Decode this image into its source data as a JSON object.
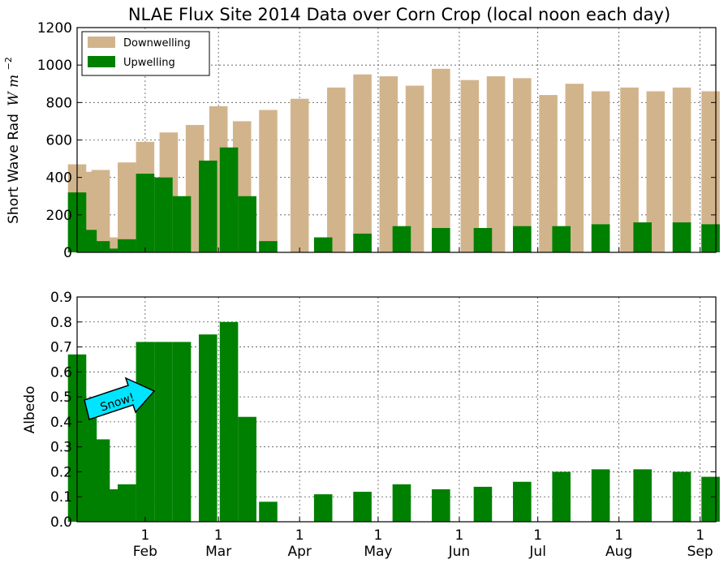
{
  "chart_data": [
    {
      "type": "bar",
      "title": "NLAE Flux Site 2014 Data over Corn Crop (local noon each day)",
      "ylabel": "Short Wave Rad",
      "ylabel_units": "W m",
      "ylabel_exponent": "−2",
      "ylim": [
        0,
        1200
      ],
      "yticks": [
        "0",
        "200",
        "400",
        "600",
        "800",
        "1000",
        "1200"
      ],
      "grid": true,
      "legend_position": "top-left",
      "x_start": "2014-01-06",
      "x_end": "2014-09-07",
      "series": [
        {
          "name": "Downwelling",
          "color": "#d2b48c",
          "points": [
            [
              "2014-01-06",
              470
            ],
            [
              "2014-01-10",
              430
            ],
            [
              "2014-01-15",
              440
            ],
            [
              "2014-01-20",
              80
            ],
            [
              "2014-01-25",
              480
            ],
            [
              "2014-02-01",
              590
            ],
            [
              "2014-02-10",
              640
            ],
            [
              "2014-02-20",
              680
            ],
            [
              "2014-03-01",
              780
            ],
            [
              "2014-03-10",
              700
            ],
            [
              "2014-03-20",
              760
            ],
            [
              "2014-04-01",
              820
            ],
            [
              "2014-04-15",
              880
            ],
            [
              "2014-04-25",
              950
            ],
            [
              "2014-05-05",
              940
            ],
            [
              "2014-05-15",
              890
            ],
            [
              "2014-05-25",
              980
            ],
            [
              "2014-06-05",
              920
            ],
            [
              "2014-06-15",
              940
            ],
            [
              "2014-06-25",
              930
            ],
            [
              "2014-07-05",
              840
            ],
            [
              "2014-07-15",
              900
            ],
            [
              "2014-07-25",
              860
            ],
            [
              "2014-08-05",
              880
            ],
            [
              "2014-08-15",
              860
            ],
            [
              "2014-08-25",
              880
            ],
            [
              "2014-09-05",
              860
            ]
          ]
        },
        {
          "name": "Upwelling",
          "color": "#008000",
          "points": [
            [
              "2014-01-06",
              320
            ],
            [
              "2014-01-10",
              120
            ],
            [
              "2014-01-15",
              60
            ],
            [
              "2014-01-20",
              20
            ],
            [
              "2014-01-25",
              70
            ],
            [
              "2014-02-01",
              420
            ],
            [
              "2014-02-08",
              400
            ],
            [
              "2014-02-15",
              300
            ],
            [
              "2014-02-25",
              490
            ],
            [
              "2014-03-05",
              560
            ],
            [
              "2014-03-12",
              300
            ],
            [
              "2014-03-20",
              60
            ],
            [
              "2014-04-10",
              80
            ],
            [
              "2014-04-25",
              100
            ],
            [
              "2014-05-10",
              140
            ],
            [
              "2014-05-25",
              130
            ],
            [
              "2014-06-10",
              130
            ],
            [
              "2014-06-25",
              140
            ],
            [
              "2014-07-10",
              140
            ],
            [
              "2014-07-25",
              150
            ],
            [
              "2014-08-10",
              160
            ],
            [
              "2014-08-25",
              160
            ],
            [
              "2014-09-05",
              150
            ]
          ]
        }
      ]
    },
    {
      "type": "bar",
      "ylabel": "Albedo",
      "ylim": [
        0,
        0.9
      ],
      "yticks": [
        "0.0",
        "0.1",
        "0.2",
        "0.3",
        "0.4",
        "0.5",
        "0.6",
        "0.7",
        "0.8",
        "0.9"
      ],
      "xtick_labels": [
        "1\nFeb",
        "1\nMar",
        "1\nApr",
        "1\nMay",
        "1\nJun",
        "1\nJul",
        "1\nAug",
        "1\nSep"
      ],
      "xtick_dates": [
        "2014-02-01",
        "2014-03-01",
        "2014-04-01",
        "2014-05-01",
        "2014-06-01",
        "2014-07-01",
        "2014-08-01",
        "2014-09-01"
      ],
      "grid": true,
      "series": [
        {
          "name": "Albedo",
          "color": "#008000",
          "points": [
            [
              "2014-01-06",
              0.67
            ],
            [
              "2014-01-10",
              0.47
            ],
            [
              "2014-01-15",
              0.33
            ],
            [
              "2014-01-20",
              0.13
            ],
            [
              "2014-01-25",
              0.15
            ],
            [
              "2014-02-01",
              0.72
            ],
            [
              "2014-02-08",
              0.72
            ],
            [
              "2014-02-15",
              0.72
            ],
            [
              "2014-02-25",
              0.75
            ],
            [
              "2014-03-05",
              0.8
            ],
            [
              "2014-03-12",
              0.42
            ],
            [
              "2014-03-20",
              0.08
            ],
            [
              "2014-04-10",
              0.11
            ],
            [
              "2014-04-25",
              0.12
            ],
            [
              "2014-05-10",
              0.15
            ],
            [
              "2014-05-25",
              0.13
            ],
            [
              "2014-06-10",
              0.14
            ],
            [
              "2014-06-25",
              0.16
            ],
            [
              "2014-07-10",
              0.2
            ],
            [
              "2014-07-25",
              0.21
            ],
            [
              "2014-08-10",
              0.21
            ],
            [
              "2014-08-25",
              0.2
            ],
            [
              "2014-09-05",
              0.18
            ]
          ]
        }
      ]
    }
  ],
  "annotation": {
    "text": "Snow!",
    "fill": "#00e5ff"
  }
}
